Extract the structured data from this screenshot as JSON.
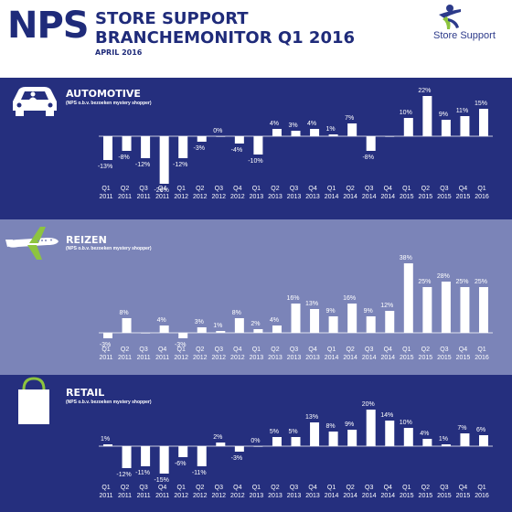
{
  "header": {
    "nps": "NPS",
    "title_line1": "STORE SUPPORT",
    "title_line2": "BRANCHEMONITOR Q1 2016",
    "date": "APRIL 2016",
    "logo_text": "Store Support"
  },
  "colors": {
    "navy": "#1f2b7a",
    "dark_band": "#252f7e",
    "light_band": "#7b84b8",
    "logo_green": "#8dc43f",
    "logo_blue": "#2c3a8a"
  },
  "categories": [
    [
      "Q1",
      "2011"
    ],
    [
      "Q2",
      "2011"
    ],
    [
      "Q3",
      "2011"
    ],
    [
      "Q4",
      "2011"
    ],
    [
      "Q1",
      "2012"
    ],
    [
      "Q2",
      "2012"
    ],
    [
      "Q3",
      "2012"
    ],
    [
      "Q4",
      "2012"
    ],
    [
      "Q1",
      "2013"
    ],
    [
      "Q2",
      "2013"
    ],
    [
      "Q3",
      "2013"
    ],
    [
      "Q4",
      "2013"
    ],
    [
      "Q1",
      "2014"
    ],
    [
      "Q2",
      "2014"
    ],
    [
      "Q3",
      "2014"
    ],
    [
      "Q4",
      "2014"
    ],
    [
      "Q1",
      "2015"
    ],
    [
      "Q2",
      "2015"
    ],
    [
      "Q3",
      "2015"
    ],
    [
      "Q4",
      "2015"
    ],
    [
      "Q1",
      "2016"
    ]
  ],
  "chart_data": [
    {
      "type": "bar",
      "title": "AUTOMOTIVE",
      "subtitle": "(NPS o.b.v. bezoeken mystery shopper)",
      "icon": "car-icon",
      "values": [
        -13,
        -8,
        -12,
        -26,
        -12,
        -3,
        0,
        -4,
        -10,
        4,
        3,
        4,
        1,
        7,
        -8,
        0,
        10,
        22,
        9,
        11,
        15
      ],
      "labels": [
        "-13%",
        "-8%",
        "-12%",
        "-26%",
        "-12%",
        "-3%",
        "0%",
        "-4%",
        "-10%",
        "4%",
        "3%",
        "4%",
        "1%",
        "7%",
        "-8%",
        "",
        "10%",
        "22%",
        "9%",
        "11%",
        "15%"
      ]
    },
    {
      "type": "bar",
      "title": "REIZEN",
      "subtitle": "(NPS o.b.v. bezoeken mystery shopper)",
      "icon": "airplane-icon",
      "values": [
        -3,
        8,
        0,
        4,
        -3,
        3,
        1,
        8,
        2,
        4,
        16,
        13,
        9,
        16,
        9,
        12,
        38,
        25,
        28,
        25,
        25
      ],
      "labels": [
        "-3%",
        "8%",
        "",
        "4%",
        "-3%",
        "3%",
        "1%",
        "8%",
        "2%",
        "4%",
        "16%",
        "13%",
        "9%",
        "16%",
        "9%",
        "12%",
        "38%",
        "25%",
        "28%",
        "25%",
        "25%"
      ]
    },
    {
      "type": "bar",
      "title": "RETAIL",
      "subtitle": "(NPS o.b.v. bezoeken mystery shopper)",
      "icon": "shopping-bag-icon",
      "values": [
        1,
        -12,
        -11,
        -15,
        -6,
        -11,
        2,
        -3,
        0,
        5,
        5,
        13,
        8,
        9,
        20,
        14,
        10,
        4,
        1,
        7,
        6
      ],
      "labels": [
        "1%",
        "-12%",
        "-11%",
        "-15%",
        "-6%",
        "-11%",
        "2%",
        "-3%",
        "0%",
        "5%",
        "5%",
        "13%",
        "8%",
        "9%",
        "20%",
        "14%",
        "10%",
        "4%",
        "1%",
        "7%",
        "6%"
      ]
    }
  ]
}
